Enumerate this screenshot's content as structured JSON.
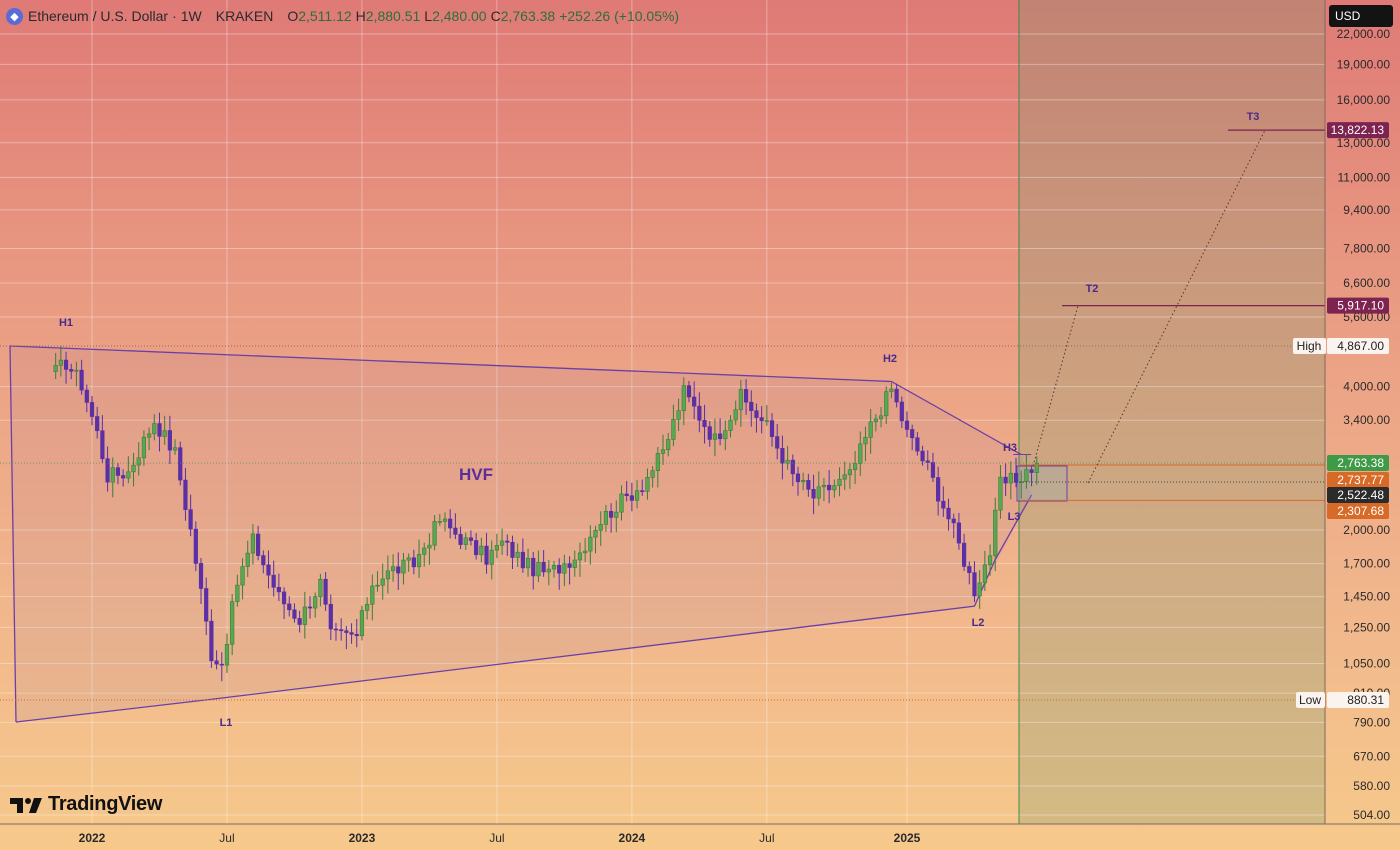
{
  "header": {
    "symbol_title": "Ethereum / U.S. Dollar",
    "interval": "1W",
    "exchange": "KRAKEN",
    "open_label": "O",
    "open": "2,511.12",
    "high_label": "H",
    "high": "2,880.51",
    "low_label": "L",
    "low": "2,480.00",
    "close_label": "C",
    "close": "2,763.38",
    "change": "+252.26 (+10.05%)",
    "logo_icon": "ethereum-icon"
  },
  "currency_button": "USD",
  "brand": {
    "name": "TradingView",
    "icon": "tradingview-logo"
  },
  "colors": {
    "bull_candle": "#3d7b3c",
    "bear_candle": "#5b2fa5",
    "pattern_line": "#6a40a8",
    "target_line": "#7e2350",
    "tag_last_price": "#3f9a48",
    "tag_orange": "#d86a28",
    "tag_dark": "#2b2b2b"
  },
  "chart_data": {
    "type": "candlestick",
    "scale": "log",
    "y_tick_labels": [
      "22,000.00",
      "19,000.00",
      "16,000.00",
      "13,000.00",
      "11,000.00",
      "9,400.00",
      "7,800.00",
      "6,600.00",
      "5,600.00",
      "4,000.00",
      "3,400.00",
      "2,000.00",
      "1,700.00",
      "1,450.00",
      "1,250.00",
      "1,050.00",
      "910.00",
      "790.00",
      "670.00",
      "580.00",
      "504.00"
    ],
    "x_tick_labels": [
      "2022",
      "Jul",
      "2023",
      "Jul",
      "2024",
      "Jul",
      "2025"
    ],
    "weekly_close_path": [
      {
        "date": "2021-11-15",
        "close": 4300
      },
      {
        "date": "2021-11-29",
        "close": 4500
      },
      {
        "date": "2021-12-20",
        "close": 4050
      },
      {
        "date": "2022-01-10",
        "close": 3200
      },
      {
        "date": "2022-01-24",
        "close": 2600
      },
      {
        "date": "2022-02-21",
        "close": 2650
      },
      {
        "date": "2022-03-28",
        "close": 3400
      },
      {
        "date": "2022-04-25",
        "close": 2900
      },
      {
        "date": "2022-05-16",
        "close": 2000
      },
      {
        "date": "2022-06-13",
        "close": 1100
      },
      {
        "date": "2022-06-27",
        "close": 1050
      },
      {
        "date": "2022-07-18",
        "close": 1550
      },
      {
        "date": "2022-08-08",
        "close": 1900
      },
      {
        "date": "2022-09-12",
        "close": 1450
      },
      {
        "date": "2022-10-10",
        "close": 1300
      },
      {
        "date": "2022-11-07",
        "close": 1550
      },
      {
        "date": "2022-11-21",
        "close": 1200
      },
      {
        "date": "2022-12-26",
        "close": 1200
      },
      {
        "date": "2023-01-16",
        "close": 1550
      },
      {
        "date": "2023-02-13",
        "close": 1650
      },
      {
        "date": "2023-03-13",
        "close": 1700
      },
      {
        "date": "2023-04-17",
        "close": 2100
      },
      {
        "date": "2023-05-29",
        "close": 1850
      },
      {
        "date": "2023-06-19",
        "close": 1750
      },
      {
        "date": "2023-07-10",
        "close": 1880
      },
      {
        "date": "2023-08-14",
        "close": 1680
      },
      {
        "date": "2023-09-11",
        "close": 1620
      },
      {
        "date": "2023-10-23",
        "close": 1800
      },
      {
        "date": "2023-11-13",
        "close": 2050
      },
      {
        "date": "2023-12-11",
        "close": 2250
      },
      {
        "date": "2024-01-15",
        "close": 2500
      },
      {
        "date": "2024-02-12",
        "close": 2900
      },
      {
        "date": "2024-03-11",
        "close": 3900
      },
      {
        "date": "2024-04-22",
        "close": 3100
      },
      {
        "date": "2024-05-27",
        "close": 3800
      },
      {
        "date": "2024-07-01",
        "close": 3300
      },
      {
        "date": "2024-08-05",
        "close": 2600
      },
      {
        "date": "2024-09-02",
        "close": 2350
      },
      {
        "date": "2024-10-21",
        "close": 2600
      },
      {
        "date": "2024-11-18",
        "close": 3300
      },
      {
        "date": "2024-12-16",
        "close": 3950
      },
      {
        "date": "2025-01-06",
        "close": 3200
      },
      {
        "date": "2025-02-03",
        "close": 2700
      },
      {
        "date": "2025-03-10",
        "close": 2000
      },
      {
        "date": "2025-04-07",
        "close": 1500
      },
      {
        "date": "2025-04-28",
        "close": 1800
      },
      {
        "date": "2025-05-12",
        "close": 2500
      },
      {
        "date": "2025-06-02",
        "close": 2550
      },
      {
        "date": "2025-06-30",
        "close": 2763.38
      }
    ],
    "pattern_name": "HVF",
    "pivot_labels": [
      "H1",
      "H2",
      "H3",
      "L1",
      "L2",
      "L3"
    ],
    "pivots": [
      {
        "label": "H1",
        "date": "2021-11-08",
        "price": 4867
      },
      {
        "label": "L1",
        "date": "2022-06-13",
        "price": 880.31
      },
      {
        "label": "H2",
        "date": "2024-12-16",
        "price": 4100
      },
      {
        "label": "L2",
        "date": "2025-04-07",
        "price": 1385
      },
      {
        "label": "H3",
        "date": "2025-06-09",
        "price": 2880
      },
      {
        "label": "L3",
        "date": "2025-06-23",
        "price": 2370
      }
    ],
    "targets": [
      {
        "label": "T2",
        "price": 5917.1,
        "price_text": "5,917.10"
      },
      {
        "label": "T3",
        "price": 13822.13,
        "price_text": "13,822.13"
      }
    ],
    "price_tags": [
      {
        "text": "High",
        "price": 4867.0,
        "price_text": "4,867.00"
      },
      {
        "text": "Low",
        "price": 880.31,
        "price_text": "880.31"
      },
      {
        "price": 2763.38,
        "price_text": "2,763.38",
        "role": "last"
      },
      {
        "price": 2737.77,
        "price_text": "2,737.77",
        "role": "orange"
      },
      {
        "price": 2522.48,
        "price_text": "2,522.48",
        "role": "dark"
      },
      {
        "price": 2307.68,
        "price_text": "2,307.68",
        "role": "orange"
      }
    ]
  }
}
